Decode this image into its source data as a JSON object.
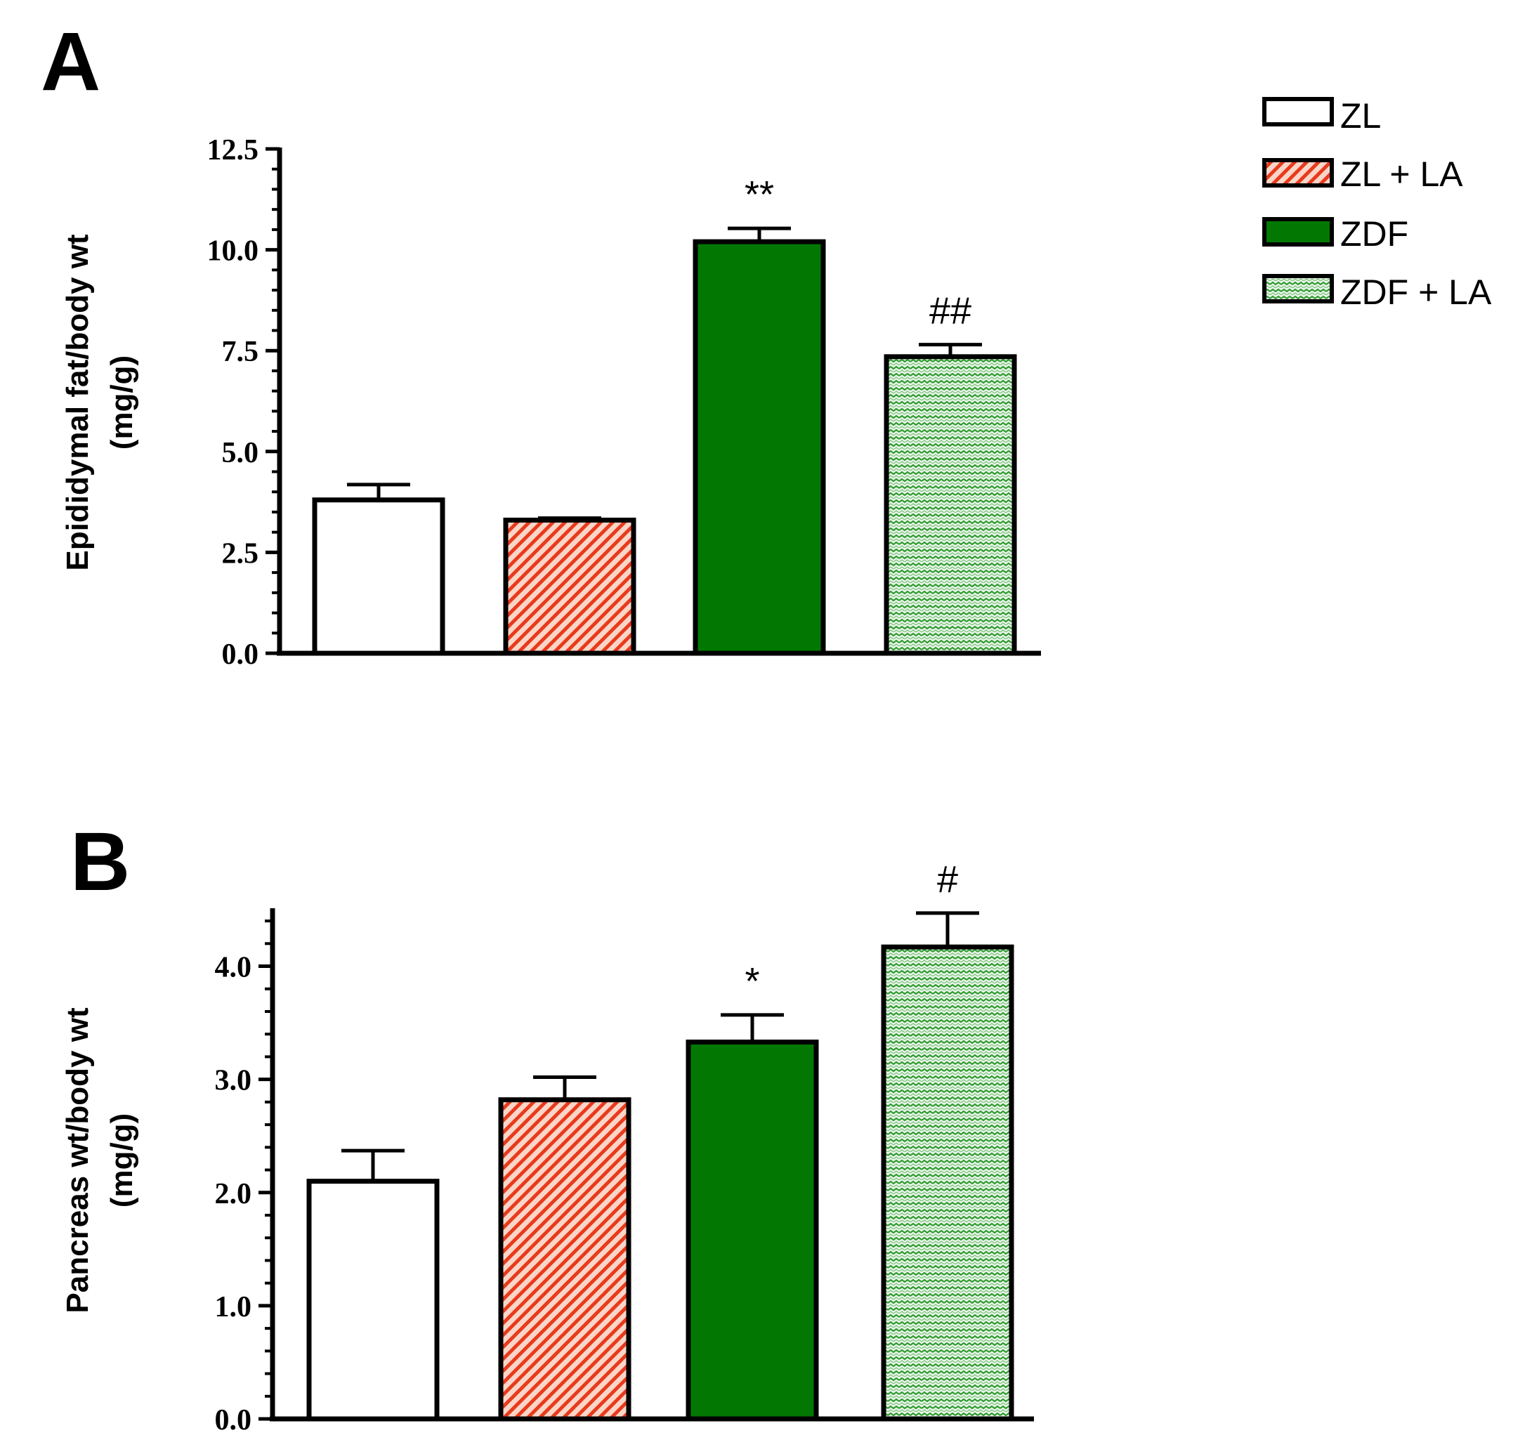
{
  "legend": {
    "items": [
      {
        "label": "ZL",
        "fill": "white"
      },
      {
        "label": "ZL + LA",
        "fill": "red-hatch"
      },
      {
        "label": "ZDF",
        "fill": "green"
      },
      {
        "label": "ZDF + LA",
        "fill": "green-wave"
      }
    ]
  },
  "colors": {
    "green": "#027802",
    "red": "#e83a1c",
    "red_bg": "#fbd6c8",
    "wave": "#2f9a2f",
    "wave_bg": "#e9f6e9",
    "ink": "#000000"
  },
  "chart_data": [
    {
      "type": "bar",
      "panel_label": "A",
      "ylabel_line1": "Epididymal fat/body wt",
      "ylabel_line2": "(mg/g)",
      "categories": [
        "ZL",
        "ZL + LA",
        "ZDF",
        "ZDF + LA"
      ],
      "values": [
        3.8,
        3.3,
        10.2,
        7.35
      ],
      "errors": [
        0.38,
        0.05,
        0.33,
        0.3
      ],
      "annotations": [
        "",
        "",
        "**",
        "##"
      ],
      "ylim": [
        0,
        12.5
      ],
      "yticks": [
        0.0,
        2.5,
        5.0,
        7.5,
        10.0,
        12.5
      ],
      "ytick_labels": [
        "0.0",
        "2.5",
        "5.0",
        "7.5",
        "10.0",
        "12.5"
      ]
    },
    {
      "type": "bar",
      "panel_label": "B",
      "ylabel_line1": "Pancreas wt/body wt",
      "ylabel_line2": "(mg/g)",
      "categories": [
        "ZL",
        "ZL + LA",
        "ZDF",
        "ZDF + LA"
      ],
      "values": [
        2.1,
        2.82,
        3.33,
        4.17
      ],
      "errors": [
        0.27,
        0.2,
        0.24,
        0.3
      ],
      "annotations": [
        "",
        "",
        "*",
        "#"
      ],
      "ylim": [
        0,
        4.5
      ],
      "yticks": [
        0.0,
        1.0,
        2.0,
        3.0,
        4.0
      ],
      "ytick_labels": [
        "0.0",
        "1.0",
        "2.0",
        "3.0",
        "4.0"
      ]
    }
  ]
}
